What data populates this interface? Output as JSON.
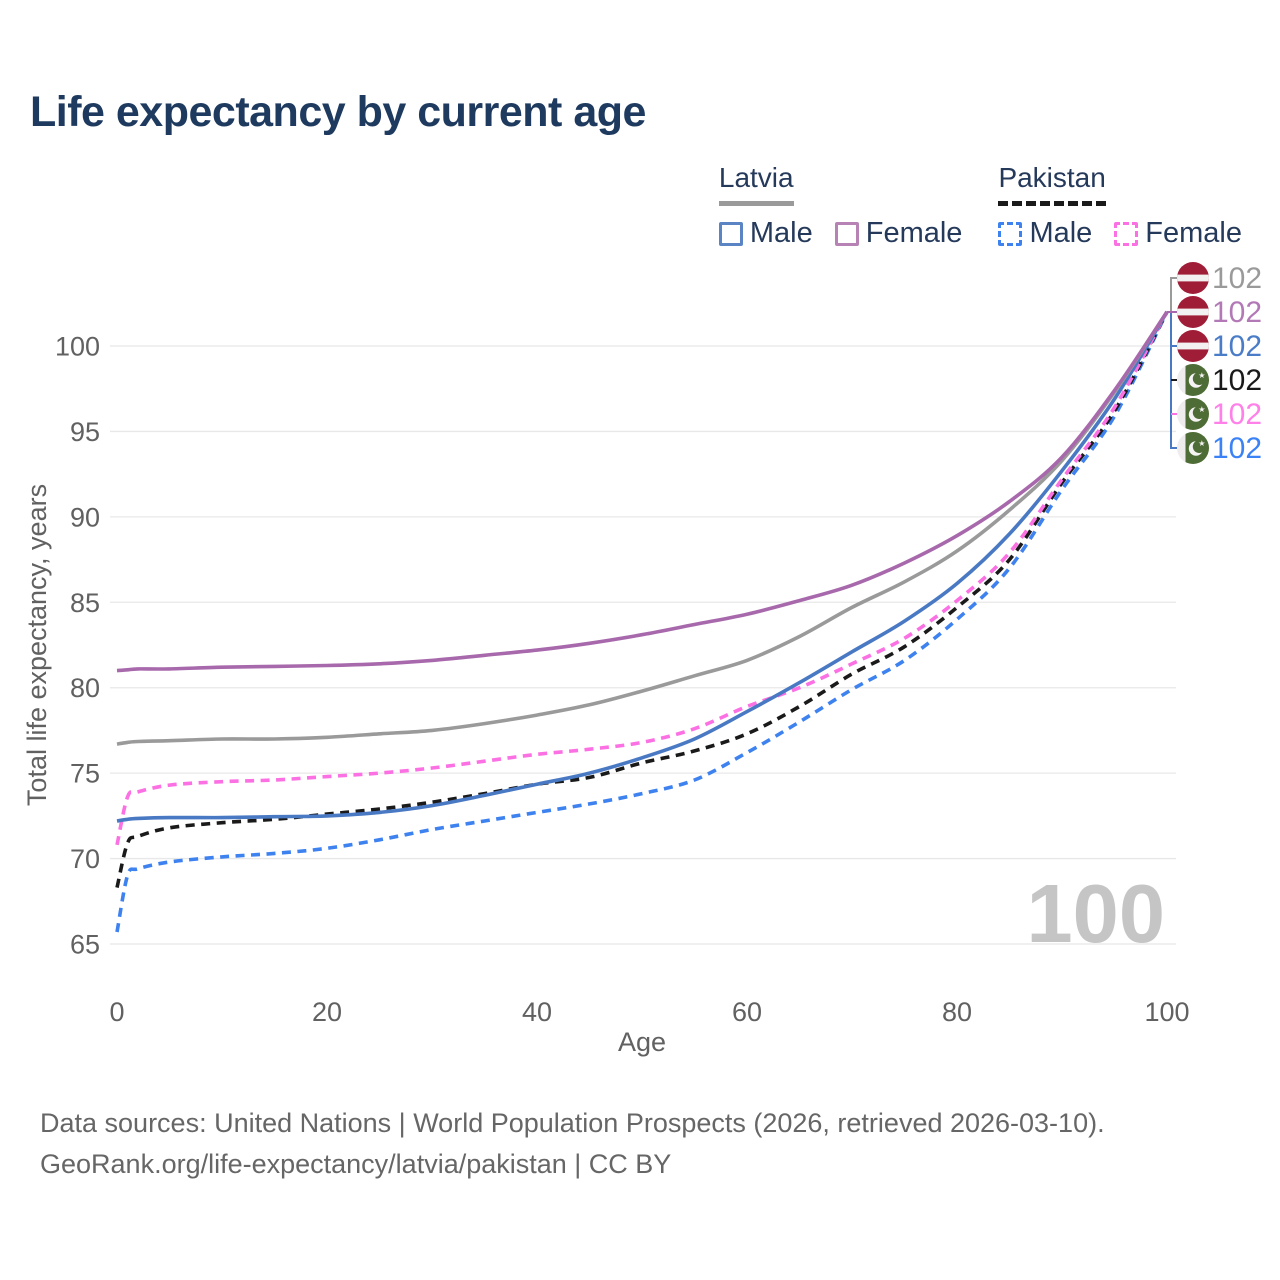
{
  "title": "Life expectancy by current age",
  "legend": {
    "groups": [
      {
        "label": "Latvia",
        "line_style": "solid",
        "underline_color": "#9a9a9a",
        "items": [
          {
            "label": "Male",
            "color": "#5b84c4",
            "dashed": false
          },
          {
            "label": "Female",
            "color": "#b783b5",
            "dashed": false
          }
        ]
      },
      {
        "label": "Pakistan",
        "line_style": "dashed",
        "underline_color": "#1a1a1a",
        "items": [
          {
            "label": "Male",
            "color": "#3e82f0",
            "dashed": true
          },
          {
            "label": "Female",
            "color": "#fb71e3",
            "dashed": true
          }
        ]
      }
    ]
  },
  "chart_data": {
    "type": "line",
    "title": "Life expectancy by current age",
    "xlabel": "Age",
    "ylabel": "Total life expectancy, years",
    "xlim": [
      0,
      100
    ],
    "ylim": [
      65,
      103.5
    ],
    "x_ticks": [
      0,
      20,
      40,
      60,
      80,
      100
    ],
    "y_ticks": [
      65,
      70,
      75,
      80,
      85,
      90,
      95,
      100
    ],
    "grid": "horizontal",
    "legend_position": "top-right",
    "watermark_age": "100",
    "ages": [
      0,
      1,
      2,
      5,
      10,
      15,
      20,
      25,
      30,
      35,
      40,
      45,
      50,
      55,
      60,
      65,
      70,
      75,
      80,
      85,
      90,
      95,
      100
    ],
    "series": [
      {
        "name": "Latvia Total",
        "country": "Latvia",
        "sex": "Total",
        "flag": "latvia",
        "color": "#9a9a9a",
        "label_color": "#9a9a9a",
        "dashed": false,
        "end_label": "102",
        "values": [
          76.7,
          76.8,
          76.85,
          76.9,
          77.0,
          77.0,
          77.1,
          77.3,
          77.5,
          77.9,
          78.4,
          79.0,
          79.8,
          80.7,
          81.6,
          83.0,
          84.7,
          86.2,
          88.0,
          90.4,
          93.3,
          97.3,
          102
        ]
      },
      {
        "name": "Latvia Female",
        "country": "Latvia",
        "sex": "Female",
        "flag": "latvia",
        "color": "#a869ac",
        "label_color": "#b279b6",
        "dashed": false,
        "end_label": "102",
        "values": [
          81.0,
          81.05,
          81.1,
          81.1,
          81.2,
          81.25,
          81.3,
          81.4,
          81.6,
          81.9,
          82.2,
          82.6,
          83.1,
          83.7,
          84.3,
          85.1,
          86.0,
          87.3,
          88.9,
          90.9,
          93.5,
          97.4,
          102
        ]
      },
      {
        "name": "Latvia Male",
        "country": "Latvia",
        "sex": "Male",
        "flag": "latvia",
        "color": "#4a79c4",
        "label_color": "#4a7cc7",
        "dashed": false,
        "end_label": "102",
        "values": [
          72.2,
          72.3,
          72.35,
          72.4,
          72.4,
          72.45,
          72.5,
          72.7,
          73.1,
          73.7,
          74.35,
          75.0,
          75.9,
          77.0,
          78.6,
          80.3,
          82.1,
          83.9,
          86.1,
          89.0,
          92.7,
          96.9,
          102
        ]
      },
      {
        "name": "Pakistan Total",
        "country": "Pakistan",
        "sex": "Total",
        "flag": "pakistan",
        "color": "#1a1a1a",
        "label_color": "#1a1a1a",
        "dashed": true,
        "end_label": "102",
        "values": [
          68.3,
          70.9,
          71.3,
          71.8,
          72.1,
          72.3,
          72.6,
          72.9,
          73.3,
          73.8,
          74.35,
          74.75,
          75.6,
          76.3,
          77.3,
          78.9,
          80.8,
          82.4,
          84.7,
          87.5,
          92.0,
          96.2,
          102
        ]
      },
      {
        "name": "Pakistan Female",
        "country": "Pakistan",
        "sex": "Female",
        "flag": "pakistan",
        "color": "#fb71e3",
        "label_color": "#ff80e8",
        "dashed": true,
        "end_label": "102",
        "values": [
          70.8,
          73.6,
          73.9,
          74.3,
          74.5,
          74.6,
          74.8,
          75.0,
          75.3,
          75.7,
          76.1,
          76.4,
          76.8,
          77.6,
          78.9,
          80.0,
          81.4,
          82.9,
          85.1,
          87.9,
          92.2,
          96.4,
          102
        ]
      },
      {
        "name": "Pakistan Male",
        "country": "Pakistan",
        "sex": "Male",
        "flag": "pakistan",
        "color": "#3e82f0",
        "label_color": "#3b82f6",
        "dashed": true,
        "end_label": "102",
        "values": [
          65.7,
          69.0,
          69.4,
          69.8,
          70.1,
          70.3,
          70.6,
          71.1,
          71.7,
          72.2,
          72.7,
          73.2,
          73.8,
          74.6,
          76.2,
          78.0,
          79.9,
          81.6,
          84.0,
          87.0,
          91.6,
          95.9,
          102
        ]
      }
    ]
  },
  "footer": {
    "line1": "Data sources: United Nations | World Population Prospects (2026, retrieved 2026-03-10).",
    "line2": "GeoRank.org/life-expectancy/latvia/pakistan | CC BY"
  }
}
